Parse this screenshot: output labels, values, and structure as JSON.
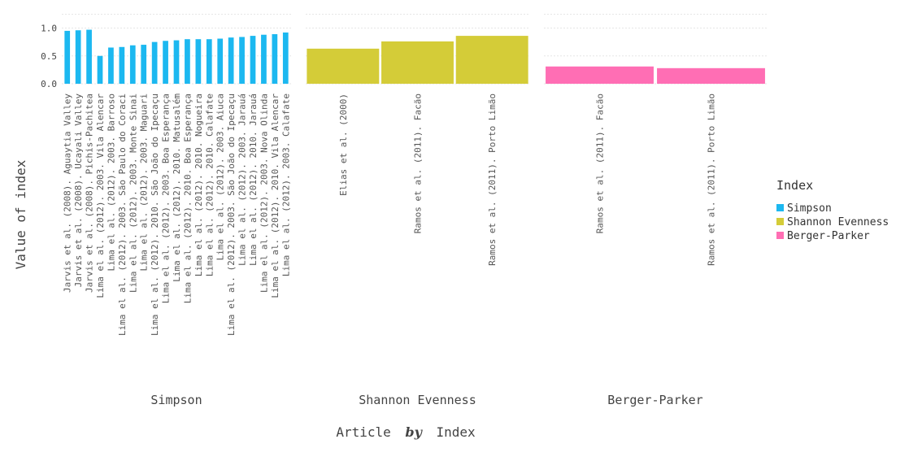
{
  "chart_data": {
    "type": "bar",
    "title": "",
    "xlabel": {
      "before": "Article",
      "by": "by",
      "after": "Index"
    },
    "ylabel": "Value of index",
    "ylim": [
      0,
      1.05
    ],
    "yticks": [
      "0.0",
      "0.5",
      "1.0"
    ],
    "grid": true,
    "legend": {
      "title": "Index",
      "placement": "right",
      "entries": [
        "Simpson",
        "Shannon Evenness",
        "Berger-Parker"
      ]
    },
    "series": [
      {
        "name": "Simpson",
        "color": "#1cb8f0",
        "categories": [
          "Jarvis et al. (2008). Aguaytia Valley",
          "Jarvis et al. (2008). Ucayali Valley",
          "Jarvis et al. (2008). Pichis-Pachitea",
          "Lima el al. (2012). 2003. Vila Alencar",
          "Lima el al. (2012). 2003. Barroso",
          "Lima el al. (2012). 2003. São Paulo do Coraci",
          "Lima el al. (2012). 2003. Monte Sinai",
          "Lima el al. (2012). 2003. Maguari",
          "Lima el al. (2012). 2010. São João do Ipecaçu",
          "Lima el al. (2012). 2003. Boa Esperança",
          "Lima el al. (2012). 2010. Matusalém",
          "Lima el al. (2012). 2010. Boa Esperança",
          "Lima el al. (2012). 2010. Nogueira",
          "Lima el al. (2012). 2010. Calafate",
          "Lima el al. (2012). 2003. Aiuca",
          "Lima el al. (2012). 2003. São João do Ipecaçu",
          "Lima el al. (2012). 2003. Jarauá",
          "Lima el al. (2012). 2010. Jarauá",
          "Lima el al. (2012). 2003. Nova Olinda",
          "Lima el al. (2012). 2010. Vila Alencar",
          "Lima el al. (2012). 2003. Calafate"
        ],
        "values": [
          0.95,
          0.96,
          0.97,
          0.5,
          0.65,
          0.66,
          0.69,
          0.7,
          0.75,
          0.77,
          0.78,
          0.8,
          0.8,
          0.8,
          0.81,
          0.83,
          0.84,
          0.86,
          0.88,
          0.89,
          0.92
        ]
      },
      {
        "name": "Shannon Evenness",
        "color": "#d4cc38",
        "categories": [
          "Elias et al. (2000)",
          "Ramos et al. (2011). Facão",
          "Ramos et al. (2011). Porto Limão"
        ],
        "values": [
          0.63,
          0.76,
          0.86
        ]
      },
      {
        "name": "Berger-Parker",
        "color": "#ff6eb4",
        "categories": [
          "Ramos et al. (2011). Facão",
          "Ramos et al. (2011). Porto Limão"
        ],
        "values": [
          0.31,
          0.28
        ]
      }
    ]
  }
}
